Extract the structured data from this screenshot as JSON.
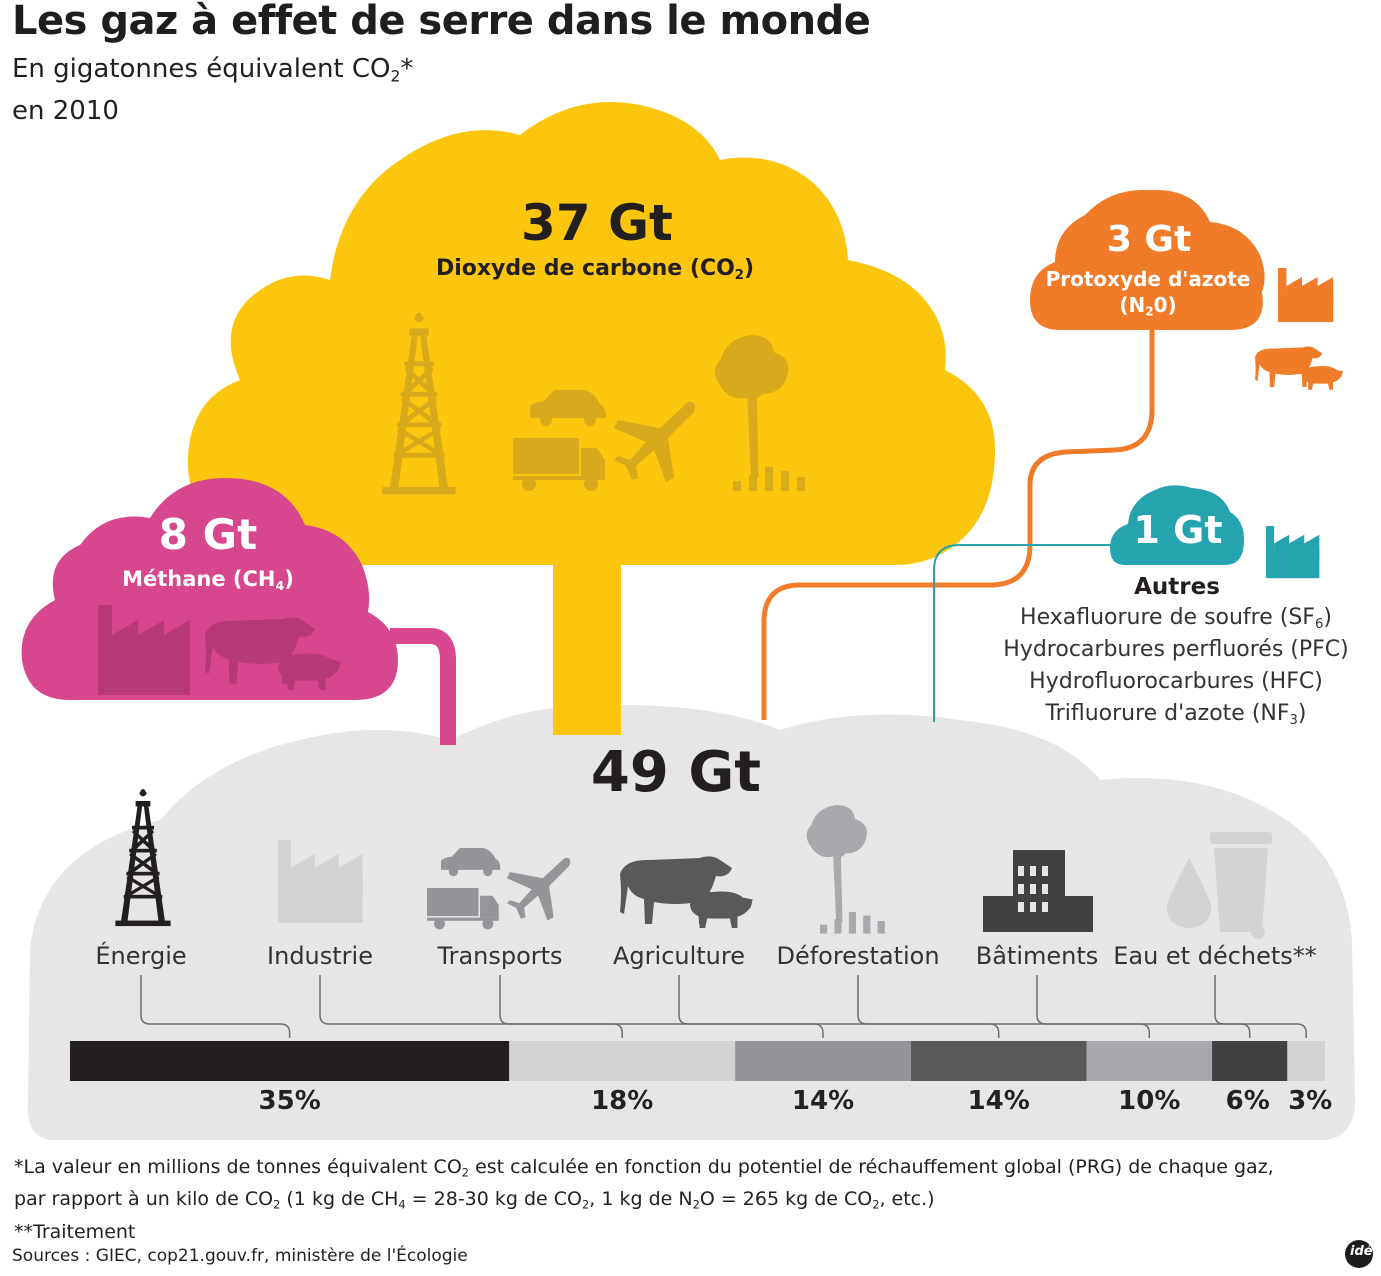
{
  "title": "Les gaz à effet de serre dans le monde",
  "subtitle": {
    "unit_prefix": "En gigatonnes équivalent CO",
    "unit_sub": "2",
    "unit_suffix": "*",
    "year": "en 2010"
  },
  "total": {
    "label": "49 Gt",
    "value": 49
  },
  "gases": [
    {
      "value": 37,
      "label": "37 Gt",
      "name_pre": "Dioxyde de carbone (CO",
      "name_sub": "2",
      "name_post": ")",
      "name_line2": "",
      "color": "#fcc60e"
    },
    {
      "value": 8,
      "label": "8 Gt",
      "name_pre": "Méthane (CH",
      "name_sub": "4",
      "name_post": ")",
      "name_line2": "",
      "color": "#d7478d"
    },
    {
      "value": 3,
      "label": "3 Gt",
      "name_pre": "Protoxyde d'azote",
      "name_sub": "",
      "name_post": "",
      "name_line2_pre": "(N",
      "name_line2_sub": "2",
      "name_line2_post": "0)",
      "color": "#f07c2a"
    },
    {
      "value": 1,
      "label": "1 Gt",
      "name_pre": "Autres",
      "name_sub": "",
      "name_post": "",
      "color": "#25a4b0"
    }
  ],
  "others": {
    "title": "Autres",
    "items": [
      {
        "pre": "Hexafluorure de soufre (SF",
        "sub": "6",
        "post": ")"
      },
      {
        "pre": "Hydrocarbures perfluorés (PFC)",
        "sub": "",
        "post": ""
      },
      {
        "pre": "Hydrofluorocarbures (HFC)",
        "sub": "",
        "post": ""
      },
      {
        "pre": "Trifluorure d'azote (NF",
        "sub": "3",
        "post": ")"
      }
    ]
  },
  "chart_data": {
    "type": "bar",
    "orientation": "horizontal-stacked",
    "categories": [
      "Énergie",
      "Industrie",
      "Transports",
      "Agriculture",
      "Déforestation",
      "Bâtiments",
      "Eau et déchets**"
    ],
    "values": [
      35,
      18,
      14,
      14,
      10,
      6,
      3
    ],
    "value_labels": [
      "35%",
      "18%",
      "14%",
      "14%",
      "10%",
      "6%",
      "3%"
    ],
    "colors": [
      "#231f20",
      "#d1d3d4",
      "#939598",
      "#58595b",
      "#a7a9ac",
      "#414042",
      "#d1d3d4"
    ],
    "title": "49 Gt"
  },
  "icons": [
    "oil-derrick-icon",
    "factory-icon",
    "car-icon",
    "truck-icon",
    "airplane-icon",
    "cow-icon",
    "pig-icon",
    "tree-icon",
    "building-icon",
    "water-drop-icon",
    "trash-bin-icon"
  ],
  "footnotes": {
    "line1_a": "*La valeur en millions de tonnes équivalent CO",
    "line1_sub": "2",
    "line1_b": " est calculée en fonction du potentiel de réchauffement global (PRG) de chaque gaz,",
    "line2_a": "par rapport à un kilo de CO",
    "line2_b": " (1 kg de CH",
    "line2_c": " = 28-30 kg de CO",
    "line2_d": ", 1 kg de N",
    "line2_e": "O = 265 kg de CO",
    "line2_f": ", etc.)",
    "sub2": "2",
    "sub4": "4",
    "line3": "**Traitement"
  },
  "sources": "Sources : GIEC, cop21.gouv.fr, ministère de l'Écologie",
  "logo_text": "idé"
}
